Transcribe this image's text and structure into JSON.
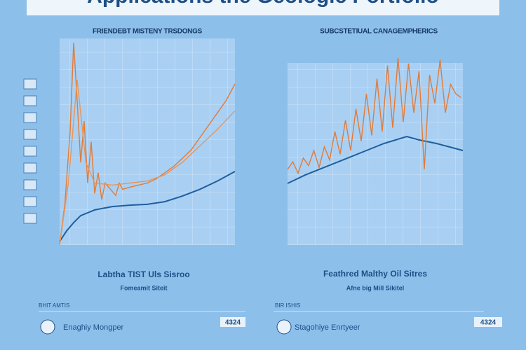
{
  "page_title": "Applications the Geologic Portfolio",
  "chart_data": [
    {
      "type": "line",
      "title": "FRIENDEBT MISTENY TRSDONGS",
      "caption": "Labtha TIST Uls Sisroo",
      "subcaption": "Fomeamit Siteit",
      "section_label": "BHIT AMTIS",
      "item_label": "Enaghiy Mongper",
      "item_value": "4324",
      "xlim": [
        0,
        100
      ],
      "ylim": [
        0,
        100
      ],
      "series": [
        {
          "color": "#1f5f9e",
          "x": [
            0,
            4,
            8,
            12,
            20,
            30,
            40,
            50,
            60,
            70,
            80,
            90,
            100
          ],
          "values": [
            1.7,
            6.8,
            10.8,
            14.2,
            17,
            18.6,
            19.3,
            19.7,
            21,
            23.7,
            27,
            31,
            35.6
          ]
        },
        {
          "color": "#e07b39",
          "x": [
            0,
            3,
            6,
            8,
            10,
            12,
            14,
            16,
            18,
            20,
            22,
            24,
            26,
            28,
            30,
            32,
            34,
            36,
            40,
            45,
            50,
            55,
            60,
            65,
            70,
            75,
            80,
            85,
            90,
            95,
            100
          ],
          "values": [
            0,
            20,
            55,
            98,
            70,
            40,
            60,
            30,
            50,
            25,
            35,
            22,
            30,
            28,
            26,
            24,
            30,
            27,
            28,
            29,
            30,
            32,
            35,
            38,
            42,
            46,
            52,
            58,
            64,
            70,
            78
          ]
        },
        {
          "color": "#e8955a",
          "x": [
            0,
            5,
            10,
            15,
            20,
            30,
            40,
            50,
            60,
            70,
            80,
            90,
            100
          ],
          "values": [
            0,
            30,
            80,
            40,
            30,
            29,
            30,
            31,
            34,
            40,
            48,
            56,
            65
          ]
        }
      ]
    },
    {
      "type": "line",
      "title": "SUBCSTETIUAL CANAGEMPHERICS",
      "caption": "Feathred Malthy Oil Sitres",
      "subcaption": "Afne big Mill Sikitel",
      "section_label": "BIR ISHIS",
      "item_label": "Stagohiye Enrtyeer",
      "item_value": "4324",
      "xlim": [
        0,
        100
      ],
      "ylim": [
        0,
        100
      ],
      "series": [
        {
          "color": "#1f5f9e",
          "x": [
            0,
            10,
            20,
            30,
            45,
            55,
            68,
            75,
            85,
            100
          ],
          "values": [
            32.6,
            37,
            40.7,
            44.4,
            50,
            53.7,
            57.4,
            55.6,
            53.7,
            50
          ]
        },
        {
          "color": "#e07b39",
          "x": [
            0,
            3,
            6,
            9,
            12,
            15,
            18,
            21,
            24,
            27,
            30,
            33,
            36,
            39,
            42,
            45,
            48,
            51,
            54,
            57,
            60,
            63,
            66,
            69,
            72,
            75,
            78,
            81,
            84,
            87,
            90,
            93,
            96,
            99
          ],
          "values": [
            40,
            44,
            38,
            46,
            42,
            50,
            41,
            52,
            45,
            60,
            48,
            66,
            50,
            72,
            55,
            80,
            58,
            88,
            60,
            95,
            62,
            99,
            65,
            96,
            70,
            92,
            40,
            90,
            75,
            98,
            70,
            85,
            80,
            78
          ]
        }
      ]
    }
  ]
}
